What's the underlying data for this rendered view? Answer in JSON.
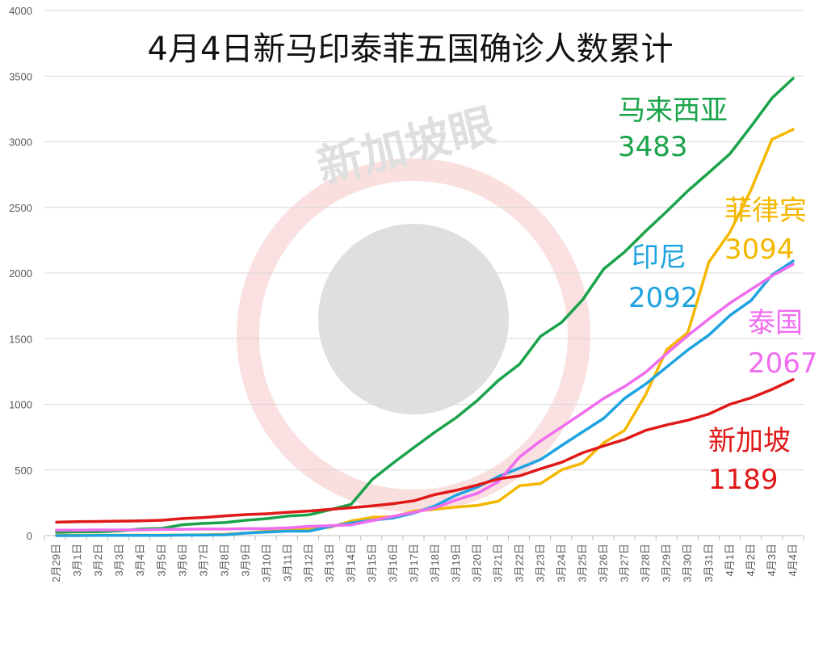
{
  "chart_data": {
    "type": "line",
    "title": "4月4日新马印泰菲五国确诊人数累计",
    "watermark": "新加坡眼",
    "ylim": [
      0,
      4000
    ],
    "yticks": [
      "0",
      "500",
      "1000",
      "1500",
      "2000",
      "2500",
      "3000",
      "3500",
      "4000"
    ],
    "grid": true,
    "categories": [
      "2月29日",
      "3月1日",
      "3月2日",
      "3月3日",
      "3月4日",
      "3月5日",
      "3月6日",
      "3月7日",
      "3月8日",
      "3月9日",
      "3月10日",
      "3月11日",
      "3月12日",
      "3月13日",
      "3月14日",
      "3月15日",
      "3月16日",
      "3月17日",
      "3月18日",
      "3月19日",
      "3月20日",
      "3月21日",
      "3月22日",
      "3月23日",
      "3月24日",
      "3月25日",
      "3月26日",
      "3月27日",
      "3月28日",
      "3月29日",
      "3月30日",
      "3月31日",
      "4月1日",
      "4月2日",
      "4月3日",
      "4月4日"
    ],
    "series": [
      {
        "name": "马来西亚",
        "final_label": "3483",
        "color": "#1aa34a",
        "values": [
          25,
          29,
          29,
          36,
          50,
          55,
          83,
          93,
          99,
          117,
          129,
          149,
          158,
          197,
          238,
          428,
          553,
          673,
          790,
          900,
          1030,
          1183,
          1306,
          1518,
          1624,
          1796,
          2031,
          2161,
          2320,
          2470,
          2626,
          2766,
          2908,
          3116,
          3333,
          3483
        ]
      },
      {
        "name": "菲律宾",
        "final_label": "3094",
        "color": "#f5b800",
        "values": [
          3,
          3,
          3,
          3,
          3,
          3,
          5,
          6,
          10,
          20,
          33,
          49,
          52,
          64,
          111,
          140,
          142,
          187,
          202,
          217,
          230,
          262,
          380,
          396,
          501,
          552,
          707,
          803,
          1075,
          1418,
          1546,
          2084,
          2311,
          2633,
          3018,
          3094
        ]
      },
      {
        "name": "印尼",
        "final_label": "2092",
        "color": "#1fa3e0",
        "values": [
          0,
          0,
          2,
          2,
          2,
          2,
          4,
          4,
          6,
          19,
          27,
          34,
          34,
          69,
          96,
          117,
          134,
          172,
          227,
          309,
          369,
          450,
          514,
          579,
          686,
          790,
          893,
          1046,
          1155,
          1285,
          1414,
          1528,
          1677,
          1790,
          1986,
          2092
        ]
      },
      {
        "name": "泰国",
        "final_label": "2067",
        "color": "#f06cf0",
        "values": [
          42,
          42,
          43,
          43,
          43,
          47,
          48,
          50,
          50,
          53,
          53,
          59,
          70,
          75,
          82,
          114,
          147,
          177,
          212,
          272,
          322,
          411,
          599,
          721,
          827,
          934,
          1045,
          1136,
          1245,
          1388,
          1524,
          1651,
          1771,
          1875,
          1978,
          2067
        ]
      },
      {
        "name": "新加坡",
        "final_label": "1189",
        "color": "#e01818",
        "values": [
          102,
          106,
          108,
          110,
          112,
          117,
          130,
          138,
          150,
          160,
          166,
          178,
          187,
          200,
          212,
          226,
          243,
          266,
          313,
          345,
          385,
          432,
          455,
          509,
          558,
          631,
          683,
          732,
          802,
          844,
          879,
          926,
          1000,
          1049,
          1114,
          1189
        ]
      }
    ]
  }
}
